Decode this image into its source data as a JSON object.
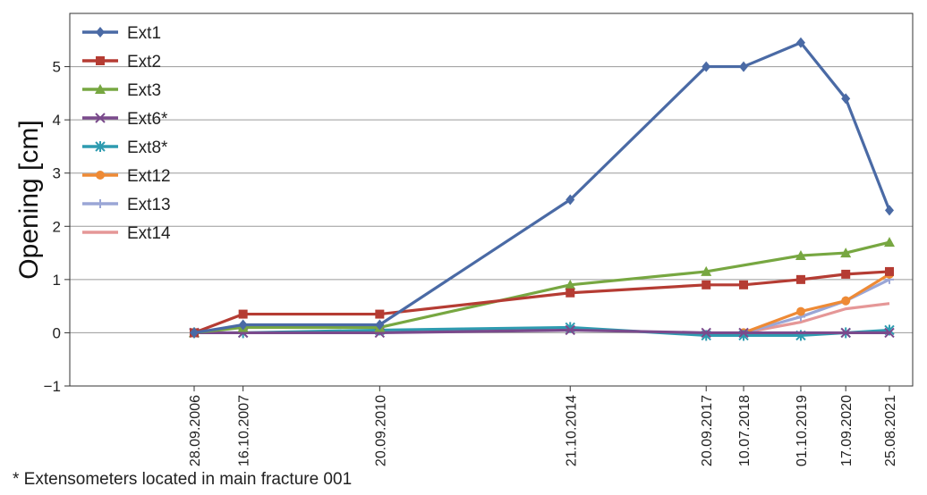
{
  "chart_data": {
    "type": "line",
    "ylabel": "Opening [cm]",
    "ylim": [
      -1,
      6
    ],
    "yticks": [
      -1,
      0,
      1,
      2,
      3,
      4,
      5
    ],
    "grid": true,
    "legend_position": "top-left",
    "x_dates": [
      "28.09.2006",
      "16.10.2007",
      "20.09.2010",
      "21.10.2014",
      "20.09.2017",
      "10.07.2018",
      "01.10.2019",
      "17.09.2020",
      "25.08.2021"
    ],
    "series": [
      {
        "name": "Ext1",
        "color": "#4a6aa5",
        "marker": "diamond",
        "values": [
          0,
          0.15,
          0.15,
          2.5,
          5.0,
          5.0,
          5.45,
          4.4,
          2.3
        ]
      },
      {
        "name": "Ext2",
        "color": "#b53c33",
        "marker": "square",
        "values": [
          0,
          0.35,
          0.35,
          0.75,
          0.9,
          0.9,
          1.0,
          1.1,
          1.15
        ]
      },
      {
        "name": "Ext3",
        "color": "#77a741",
        "marker": "triangle",
        "values": [
          0,
          0.1,
          0.1,
          0.9,
          1.15,
          null,
          1.45,
          1.5,
          1.7
        ]
      },
      {
        "name": "Ext6*",
        "color": "#7a4a8c",
        "marker": "x",
        "values": [
          0,
          0,
          0,
          0.05,
          0,
          0,
          null,
          0,
          0
        ]
      },
      {
        "name": "Ext8*",
        "color": "#2e9bb0",
        "marker": "asterisk",
        "values": [
          0,
          0,
          0.05,
          0.1,
          -0.05,
          -0.05,
          -0.05,
          0,
          0.05
        ]
      },
      {
        "name": "Ext12",
        "color": "#ee8a35",
        "marker": "circle",
        "values": [
          null,
          null,
          null,
          null,
          null,
          0,
          0.4,
          0.6,
          1.1
        ]
      },
      {
        "name": "Ext13",
        "color": "#9aa6d6",
        "marker": "plus",
        "values": [
          null,
          null,
          null,
          null,
          null,
          0,
          0.3,
          0.6,
          1.0
        ]
      },
      {
        "name": "Ext14",
        "color": "#e59797",
        "marker": "none",
        "values": [
          null,
          null,
          null,
          null,
          null,
          0,
          0.2,
          0.45,
          0.55
        ]
      }
    ]
  },
  "footnote": "* Extensometers located in main fracture 001"
}
